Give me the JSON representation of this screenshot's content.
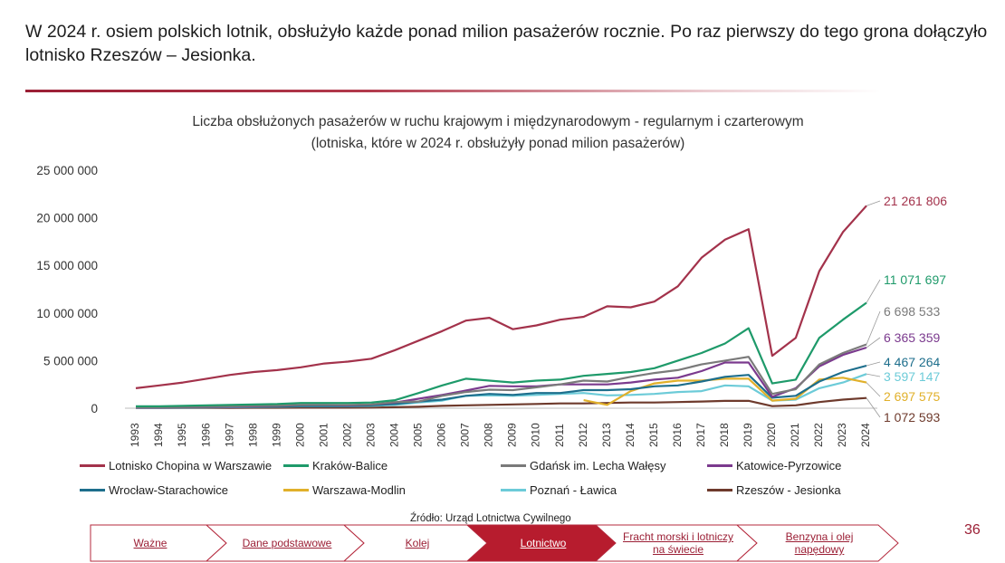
{
  "headline": "W 2024 r. osiem polskich lotnik, obsłużyło każde ponad milion pasażerów rocznie. Po raz pierwszy do tego grona dołączyło lotnisko Rzeszów – Jesionka.",
  "source": "Źródło: Urząd Lotnictwa Cywilnego",
  "page_number": "36",
  "nav": {
    "tabs": [
      {
        "label": "Ważne",
        "active": false
      },
      {
        "label": "Dane podstawowe",
        "active": false
      },
      {
        "label": "Kolej",
        "active": false
      },
      {
        "label": "Lotnictwo",
        "active": true
      },
      {
        "label": "Fracht morski i lotniczy na świecie",
        "active": false
      },
      {
        "label": "Benzyna i olej napędowy",
        "active": false
      }
    ],
    "active_color": "#b71c2e",
    "border_color": "#b4283c"
  },
  "chart_data": {
    "type": "line",
    "title": "Liczba obsłużonych pasażerów w ruchu krajowym i międzynarodowym - regularnym i czarterowym",
    "subtitle": "(lotniska, które w 2024 r. obsłużyły ponad milion pasażerów)",
    "ylim": [
      0,
      25000000
    ],
    "y_ticks": [
      "0",
      "5 000 000",
      "10 000 000",
      "15 000 000",
      "20 000 000",
      "25 000 000"
    ],
    "y_tick_values": [
      0,
      5000000,
      10000000,
      15000000,
      20000000,
      25000000
    ],
    "x": [
      "1993",
      "1994",
      "1995",
      "1996",
      "1997",
      "1998",
      "1999",
      "2000",
      "2001",
      "2002",
      "2003",
      "2004",
      "2005",
      "2006",
      "2007",
      "2008",
      "2009",
      "2010",
      "2011",
      "2012",
      "2013",
      "2014",
      "2015",
      "2016",
      "2017",
      "2018",
      "2019",
      "2020",
      "2021",
      "2022",
      "2023",
      "2024"
    ],
    "grid": false,
    "legend_position": "bottom",
    "series": [
      {
        "name": "Lotnisko Chopina w Warszawie",
        "color": "#a3324b",
        "end_label": "21 261 806",
        "values": [
          2100000,
          2400000,
          2700000,
          3100000,
          3500000,
          3800000,
          4000000,
          4300000,
          4700000,
          4900000,
          5200000,
          6100000,
          7100000,
          8100000,
          9200000,
          9500000,
          8300000,
          8700000,
          9300000,
          9600000,
          10700000,
          10600000,
          11200000,
          12800000,
          15800000,
          17700000,
          18800000,
          5500000,
          7400000,
          14400000,
          18500000,
          21261806
        ]
      },
      {
        "name": "Kraków-Balice",
        "color": "#1e9a6a",
        "end_label": "11 071 697",
        "values": [
          200000,
          200000,
          250000,
          300000,
          350000,
          400000,
          450000,
          550000,
          550000,
          550000,
          600000,
          850000,
          1600000,
          2400000,
          3100000,
          2900000,
          2700000,
          2900000,
          3000000,
          3400000,
          3600000,
          3800000,
          4200000,
          5000000,
          5800000,
          6800000,
          8400000,
          2600000,
          3000000,
          7400000,
          9300000,
          11071697
        ]
      },
      {
        "name": "Gdańsk im. Lecha Wałęsy",
        "color": "#7a7a7a",
        "end_label": "6 698 533",
        "values": [
          100000,
          100000,
          120000,
          150000,
          200000,
          250000,
          280000,
          350000,
          350000,
          350000,
          400000,
          650000,
          700000,
          1300000,
          1700000,
          1950000,
          1900000,
          2200000,
          2500000,
          2900000,
          2800000,
          3300000,
          3700000,
          4000000,
          4600000,
          5000000,
          5400000,
          1500000,
          2000000,
          4600000,
          5800000,
          6698533
        ]
      },
      {
        "name": "Katowice-Pyrzowice",
        "color": "#7b3a8e",
        "end_label": "6 365 359",
        "values": [
          80000,
          80000,
          100000,
          120000,
          150000,
          200000,
          250000,
          350000,
          350000,
          300000,
          400000,
          600000,
          1000000,
          1400000,
          1850000,
          2350000,
          2300000,
          2300000,
          2500000,
          2500000,
          2500000,
          2700000,
          3000000,
          3200000,
          3900000,
          4800000,
          4800000,
          1200000,
          2100000,
          4400000,
          5600000,
          6365359
        ]
      },
      {
        "name": "Wrocław-Starachowice",
        "color": "#1d6e8c",
        "end_label": "4 467 264",
        "values": [
          60000,
          60000,
          80000,
          100000,
          120000,
          150000,
          180000,
          230000,
          230000,
          230000,
          300000,
          450000,
          700000,
          900000,
          1300000,
          1500000,
          1400000,
          1600000,
          1600000,
          1900000,
          1900000,
          2000000,
          2300000,
          2400000,
          2800000,
          3300000,
          3500000,
          1100000,
          1300000,
          2800000,
          3800000,
          4467264
        ]
      },
      {
        "name": "Warszawa-Modlin",
        "color": "#e1b02a",
        "end_label": "2 697 575",
        "values": [
          null,
          null,
          null,
          null,
          null,
          null,
          null,
          null,
          null,
          null,
          null,
          null,
          null,
          null,
          null,
          null,
          null,
          null,
          null,
          850000,
          350000,
          1800000,
          2600000,
          2900000,
          2900000,
          3100000,
          3100000,
          800000,
          1000000,
          3000000,
          3200000,
          2697575
        ]
      },
      {
        "name": "Poznań - Ławica",
        "color": "#6ccbd8",
        "end_label": "3 597 147",
        "values": [
          50000,
          50000,
          70000,
          80000,
          100000,
          120000,
          150000,
          200000,
          200000,
          200000,
          250000,
          350000,
          600000,
          800000,
          1300000,
          1350000,
          1300000,
          1400000,
          1500000,
          1600000,
          1350000,
          1400000,
          1500000,
          1700000,
          1800000,
          2400000,
          2300000,
          800000,
          900000,
          2100000,
          2700000,
          3597147
        ]
      },
      {
        "name": "Rzeszów - Jesionka",
        "color": "#6e3a2c",
        "end_label": "1 072 593",
        "values": [
          30000,
          30000,
          30000,
          35000,
          40000,
          45000,
          50000,
          60000,
          60000,
          60000,
          70000,
          100000,
          150000,
          250000,
          300000,
          350000,
          400000,
          450000,
          500000,
          500000,
          550000,
          600000,
          600000,
          650000,
          700000,
          770000,
          780000,
          220000,
          300000,
          650000,
          900000,
          1072593
        ]
      }
    ]
  }
}
